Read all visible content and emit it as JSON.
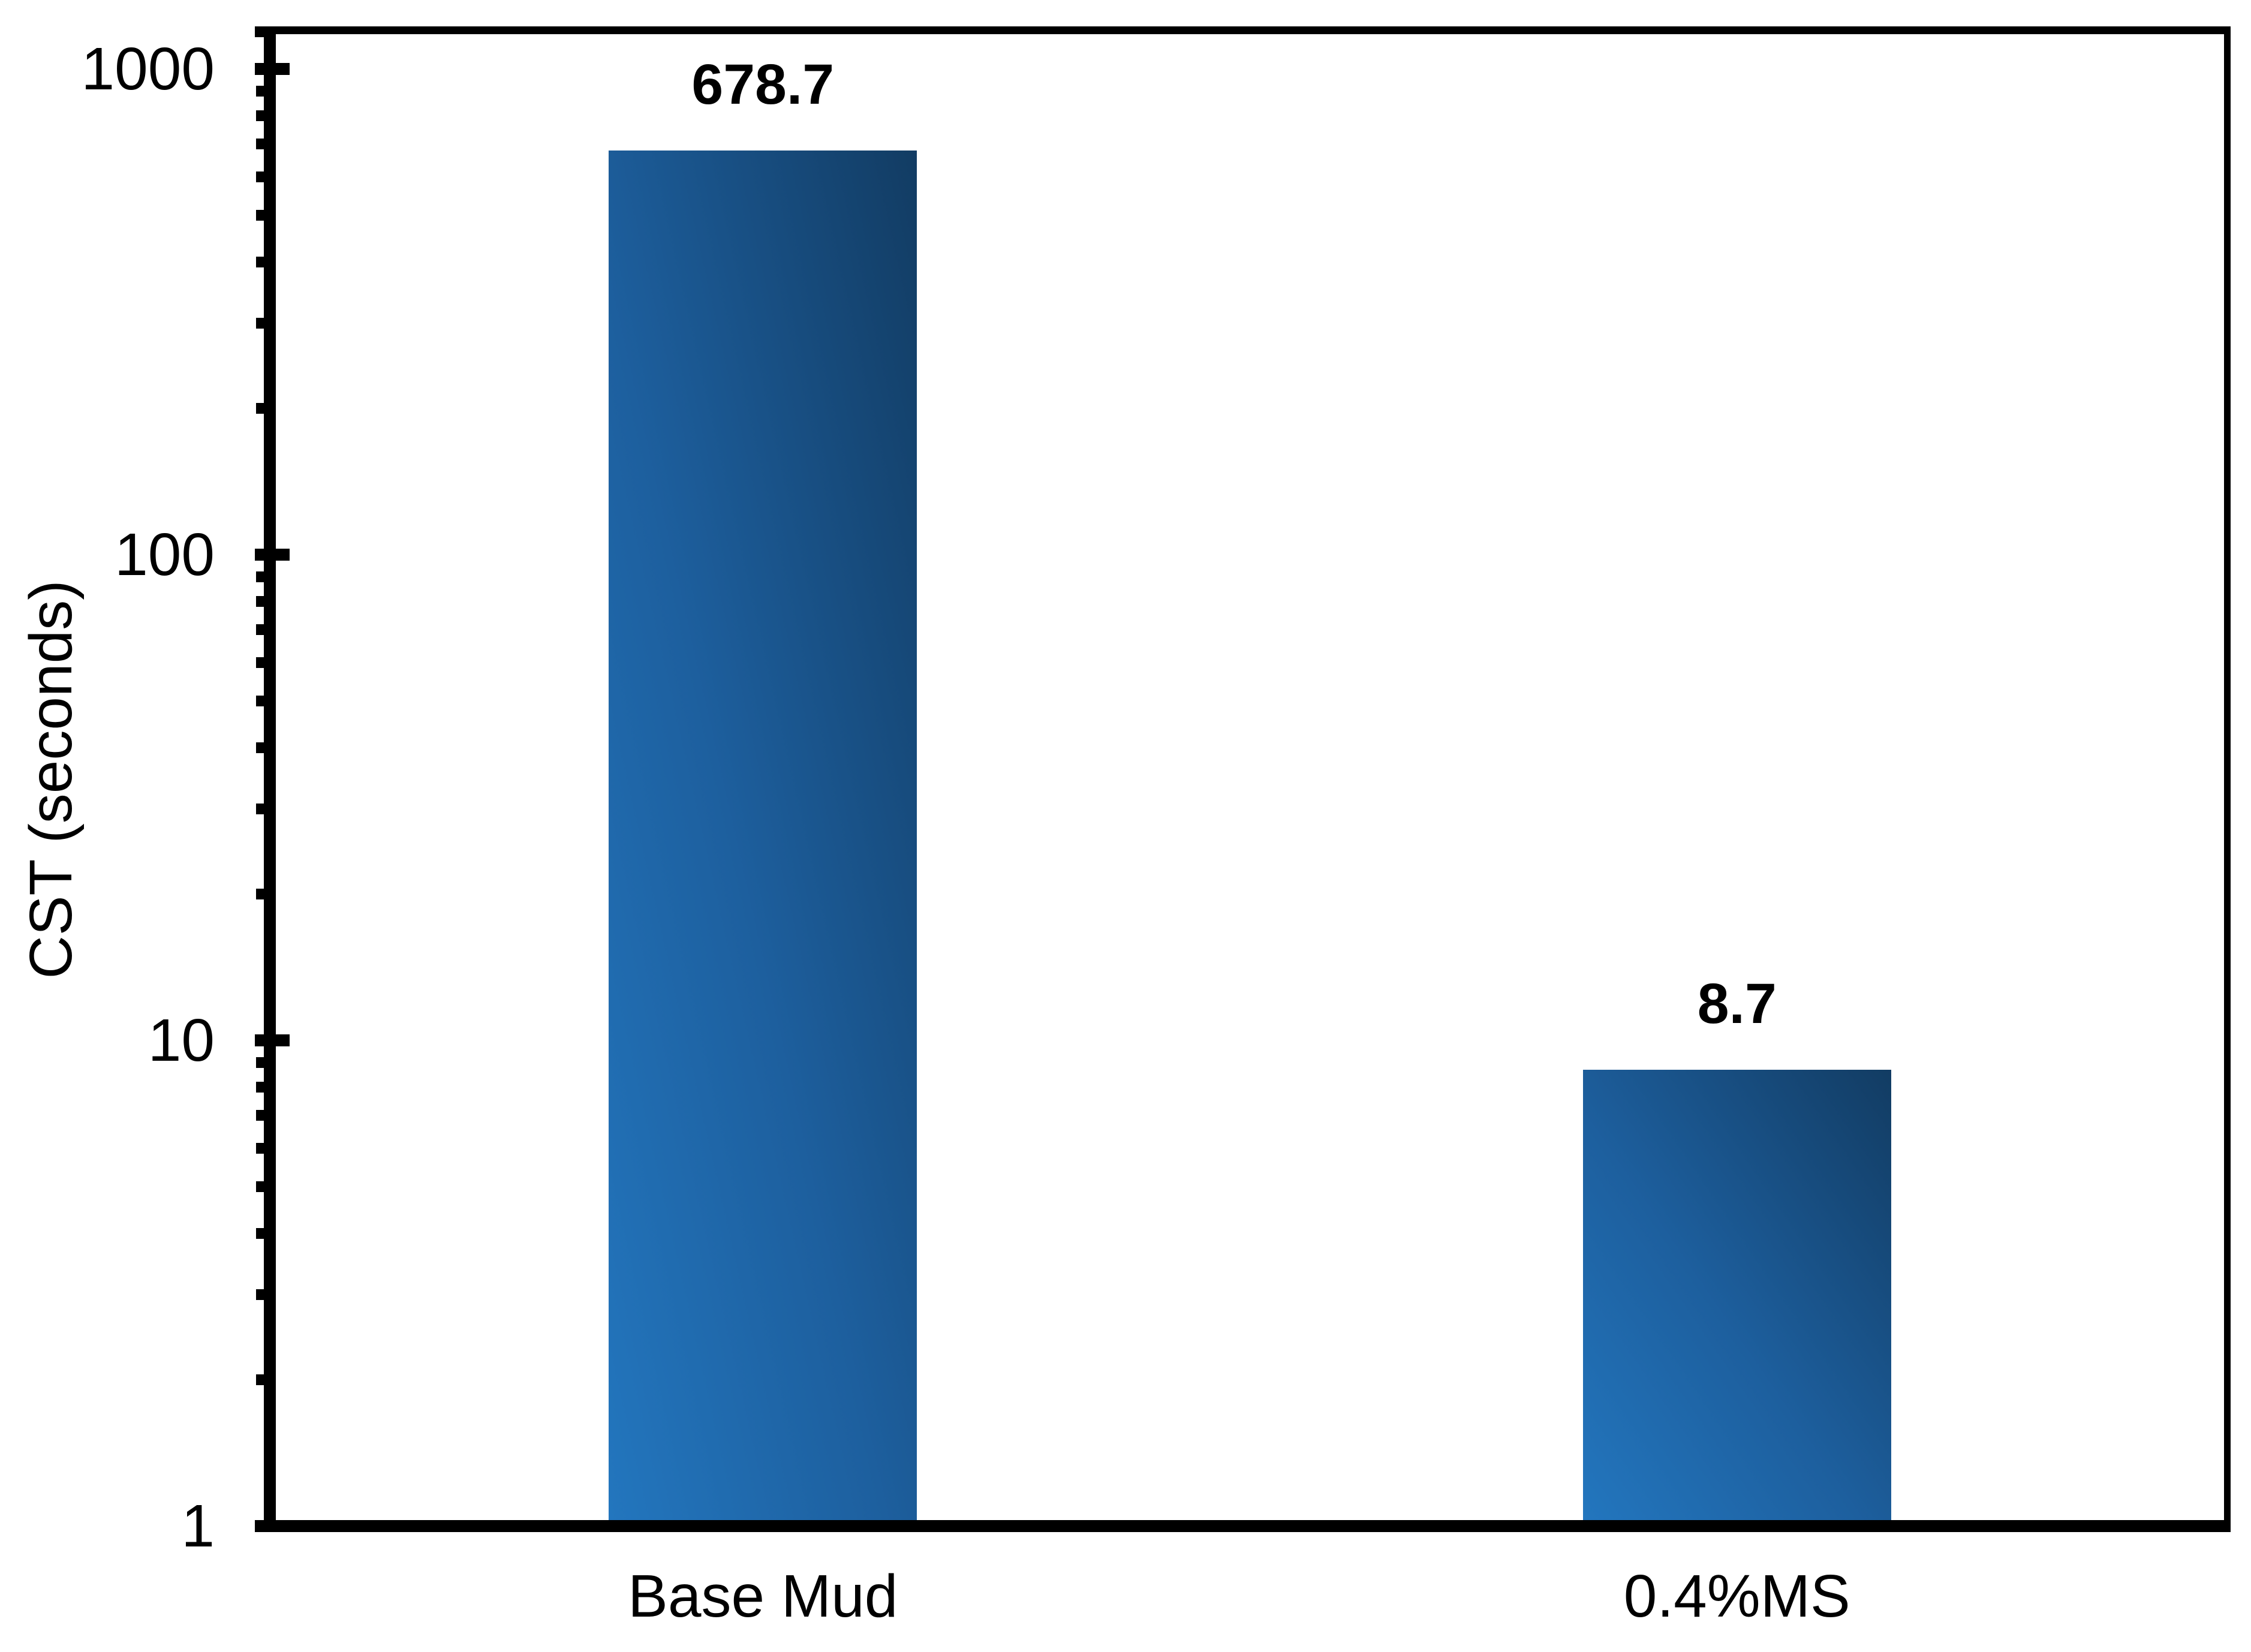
{
  "chart_data": {
    "type": "bar",
    "categories": [
      "Base Mud",
      "0.4%MS"
    ],
    "values": [
      678.7,
      8.7
    ],
    "data_labels": [
      "678.7",
      "8.7"
    ],
    "title": "",
    "xlabel": "",
    "ylabel": "CST (seconds)",
    "y_scale": "log",
    "ylim": [
      1,
      1200
    ],
    "y_major_ticks": [
      1000,
      100,
      10,
      1
    ],
    "y_tick_labels": [
      "1000",
      "100",
      "10",
      "1"
    ],
    "y_minor_tick_multiples": [
      2,
      3,
      4,
      5,
      6,
      7,
      8,
      9
    ],
    "grid": false,
    "legend": false,
    "bar_color_light": "#2376BE",
    "bar_color_mid": "#1D5F9E",
    "bar_color_dark": "#123C63",
    "axis_color": "#000000",
    "background_color": "#FFFFFF"
  }
}
